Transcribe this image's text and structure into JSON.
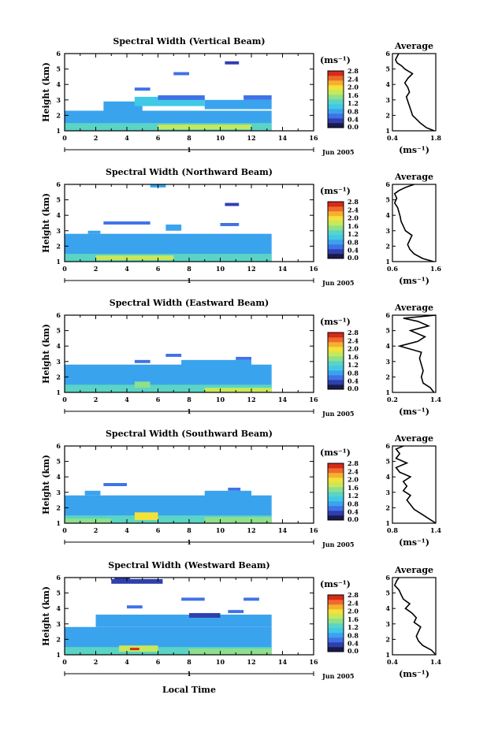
{
  "colorscale": {
    "colors": [
      "#1a1a4a",
      "#2f3fae",
      "#3f72e6",
      "#3aa3ee",
      "#40c9e6",
      "#5ad4c4",
      "#8ee08c",
      "#c8e85a",
      "#f2e23a",
      "#f6b030",
      "#ef6a2a",
      "#d62a1a"
    ]
  },
  "bottom_xlabel": "Local Time",
  "chart_data": [
    {
      "type": "heatmap",
      "title": "Spectral Width (Vertical Beam)",
      "ylabel": "Height (km)",
      "ylim": [
        1,
        6
      ],
      "yticks": [
        "1",
        "2",
        "3",
        "4",
        "5",
        "6"
      ],
      "xlim": [
        0,
        16
      ],
      "xticks": [
        "0",
        "2",
        "4",
        "6",
        "8",
        "10",
        "12",
        "14",
        "16"
      ],
      "date_label": "Jun 2005",
      "day_label": "1",
      "colorbar": {
        "unit": "(ms⁻¹)",
        "ticks": [
          "2.8",
          "2.4",
          "2.0",
          "1.6",
          "1.2",
          "0.8",
          "0.4",
          "0.0"
        ],
        "min": 0.0,
        "max": 2.8
      },
      "data_extent": {
        "x_end": 13.3,
        "base_top": 2.3
      },
      "patches": [
        {
          "x0": 0,
          "x1": 13.3,
          "y0": 1.0,
          "y1": 2.3,
          "v": 0.9
        },
        {
          "x0": 0,
          "x1": 13.3,
          "y0": 1.0,
          "y1": 1.5,
          "v": 1.3
        },
        {
          "x0": 6,
          "x1": 12,
          "y0": 1.1,
          "y1": 1.4,
          "v": 1.7
        },
        {
          "x0": 2,
          "x1": 12,
          "y0": 1.9,
          "y1": 2.3,
          "v": 0.7
        },
        {
          "x0": 2.5,
          "x1": 5,
          "y0": 2.3,
          "y1": 2.9,
          "v": 0.8
        },
        {
          "x0": 4.5,
          "x1": 9,
          "y0": 2.6,
          "y1": 3.2,
          "v": 1.0
        },
        {
          "x0": 6,
          "x1": 9,
          "y0": 3.0,
          "y1": 3.3,
          "v": 0.5
        },
        {
          "x0": 9,
          "x1": 13.3,
          "y0": 2.4,
          "y1": 3.0,
          "v": 0.9
        },
        {
          "x0": 11.5,
          "x1": 13.3,
          "y0": 3.0,
          "y1": 3.3,
          "v": 0.6
        },
        {
          "x0": 4.5,
          "x1": 5.5,
          "y0": 3.6,
          "y1": 3.8,
          "v": 0.5
        },
        {
          "x0": 7,
          "x1": 8,
          "y0": 4.6,
          "y1": 4.8,
          "v": 0.5
        },
        {
          "x0": 10.3,
          "x1": 11.2,
          "y0": 5.3,
          "y1": 5.5,
          "v": 0.3
        }
      ],
      "profile": {
        "xlim": [
          0.4,
          1.8
        ],
        "xticks": [
          "0.4",
          "1.8"
        ],
        "title": "Average",
        "xlabel": "(ms⁻¹)",
        "y": [
          1.0,
          1.2,
          1.5,
          1.8,
          2.0,
          2.3,
          2.6,
          2.9,
          3.2,
          3.5,
          3.8,
          4.1,
          4.4,
          4.7,
          5.0,
          5.2,
          5.4,
          5.6,
          5.8,
          6.0
        ],
        "x": [
          1.75,
          1.5,
          1.3,
          1.15,
          1.05,
          1.0,
          0.95,
          0.9,
          0.85,
          0.95,
          0.9,
          0.8,
          0.9,
          1.05,
          0.8,
          0.7,
          0.55,
          0.5,
          0.55,
          0.6
        ]
      }
    },
    {
      "type": "heatmap",
      "title": "Spectral Width (Northward Beam)",
      "ylabel": "Height (km)",
      "ylim": [
        1,
        6
      ],
      "yticks": [
        "1",
        "2",
        "3",
        "4",
        "5",
        "6"
      ],
      "xlim": [
        0,
        16
      ],
      "xticks": [
        "0",
        "2",
        "4",
        "6",
        "8",
        "10",
        "12",
        "14",
        "16"
      ],
      "date_label": "Jun 2005",
      "day_label": "1",
      "colorbar": {
        "unit": "(ms⁻¹)",
        "ticks": [
          "2.8",
          "2.4",
          "2.0",
          "1.6",
          "1.2",
          "0.8",
          "0.4",
          "0.0"
        ],
        "min": 0.0,
        "max": 2.8
      },
      "data_extent": {
        "x_end": 13.3,
        "base_top": 2.8
      },
      "patches": [
        {
          "x0": 0,
          "x1": 13.3,
          "y0": 1.0,
          "y1": 2.8,
          "v": 0.9
        },
        {
          "x0": 0,
          "x1": 13.3,
          "y0": 1.0,
          "y1": 1.5,
          "v": 1.3
        },
        {
          "x0": 2,
          "x1": 7,
          "y0": 1.1,
          "y1": 1.4,
          "v": 1.7
        },
        {
          "x0": 7,
          "x1": 12,
          "y0": 1.7,
          "y1": 2.2,
          "v": 0.7
        },
        {
          "x0": 1.5,
          "x1": 2.3,
          "y0": 2.8,
          "y1": 3.0,
          "v": 0.9
        },
        {
          "x0": 2.5,
          "x1": 5.5,
          "y0": 3.4,
          "y1": 3.6,
          "v": 0.5
        },
        {
          "x0": 6.5,
          "x1": 7.5,
          "y0": 3.0,
          "y1": 3.4,
          "v": 0.8
        },
        {
          "x0": 10,
          "x1": 11.2,
          "y0": 3.3,
          "y1": 3.5,
          "v": 0.6
        },
        {
          "x0": 10.3,
          "x1": 11.2,
          "y0": 4.6,
          "y1": 4.8,
          "v": 0.4
        },
        {
          "x0": 5.5,
          "x1": 6.5,
          "y0": 5.8,
          "y1": 6.0,
          "v": 0.7
        }
      ],
      "profile": {
        "xlim": [
          0.6,
          1.6
        ],
        "xticks": [
          "0.6",
          "1.6"
        ],
        "title": "Average",
        "xlabel": "(ms⁻¹)",
        "y": [
          1.0,
          1.2,
          1.5,
          1.8,
          2.1,
          2.4,
          2.7,
          3.0,
          3.3,
          3.6,
          3.9,
          4.2,
          4.5,
          4.8,
          5.1,
          5.4,
          5.6,
          5.8,
          6.0
        ],
        "x": [
          1.55,
          1.3,
          1.1,
          1.0,
          0.95,
          1.0,
          1.05,
          0.9,
          0.85,
          0.8,
          0.78,
          0.75,
          0.72,
          0.65,
          0.7,
          0.65,
          0.75,
          0.9,
          1.1
        ]
      }
    },
    {
      "type": "heatmap",
      "title": "Spectral Width (Eastward Beam)",
      "ylabel": "Height (km)",
      "ylim": [
        1,
        6
      ],
      "yticks": [
        "1",
        "2",
        "3",
        "4",
        "5",
        "6"
      ],
      "xlim": [
        0,
        16
      ],
      "xticks": [
        "0",
        "2",
        "4",
        "6",
        "8",
        "10",
        "12",
        "14",
        "16"
      ],
      "date_label": "Jun 2005",
      "day_label": "1",
      "colorbar": {
        "unit": "(ms⁻¹)",
        "ticks": [
          "2.8",
          "2.4",
          "2.0",
          "1.6",
          "1.2",
          "0.8",
          "0.4",
          "0.0"
        ],
        "min": 0.0,
        "max": 2.8
      },
      "data_extent": {
        "x_end": 13.3,
        "base_top": 2.8
      },
      "patches": [
        {
          "x0": 0,
          "x1": 13.3,
          "y0": 1.0,
          "y1": 2.8,
          "v": 0.9
        },
        {
          "x0": 0,
          "x1": 13.3,
          "y0": 1.0,
          "y1": 1.5,
          "v": 1.3
        },
        {
          "x0": 9,
          "x1": 13.3,
          "y0": 1.0,
          "y1": 1.3,
          "v": 1.7
        },
        {
          "x0": 4.5,
          "x1": 5.5,
          "y0": 1.3,
          "y1": 1.7,
          "v": 1.6
        },
        {
          "x0": 2,
          "x1": 9,
          "y0": 1.8,
          "y1": 2.3,
          "v": 0.7
        },
        {
          "x0": 4.5,
          "x1": 5.5,
          "y0": 2.9,
          "y1": 3.1,
          "v": 0.5
        },
        {
          "x0": 6.5,
          "x1": 7.5,
          "y0": 3.3,
          "y1": 3.5,
          "v": 0.5
        },
        {
          "x0": 7.5,
          "x1": 12,
          "y0": 2.7,
          "y1": 3.1,
          "v": 0.7
        },
        {
          "x0": 11,
          "x1": 12,
          "y0": 3.1,
          "y1": 3.3,
          "v": 0.6
        }
      ],
      "profile": {
        "xlim": [
          0.2,
          1.4
        ],
        "xticks": [
          "0.2",
          "1.4"
        ],
        "title": "Average",
        "xlabel": "(ms⁻¹)",
        "y": [
          1.0,
          1.3,
          1.6,
          2.0,
          2.4,
          2.8,
          3.2,
          3.6,
          4.0,
          4.3,
          4.6,
          5.0,
          5.3,
          5.6,
          5.8,
          6.0
        ],
        "x": [
          1.35,
          1.25,
          1.05,
          1.0,
          1.05,
          1.0,
          0.95,
          1.0,
          0.4,
          0.9,
          1.1,
          0.7,
          1.2,
          0.9,
          0.5,
          1.4
        ]
      }
    },
    {
      "type": "heatmap",
      "title": "Spectral Width (Southward Beam)",
      "ylabel": "Height (km)",
      "ylim": [
        1,
        6
      ],
      "yticks": [
        "1",
        "2",
        "3",
        "4",
        "5",
        "6"
      ],
      "xlim": [
        0,
        16
      ],
      "xticks": [
        "0",
        "2",
        "4",
        "6",
        "8",
        "10",
        "12",
        "14",
        "16"
      ],
      "date_label": "Jun 2005",
      "day_label": "1",
      "colorbar": {
        "unit": "(ms⁻¹)",
        "ticks": [
          "2.8",
          "2.4",
          "2.0",
          "1.6",
          "1.2",
          "0.8",
          "0.4",
          "0.0"
        ],
        "min": 0.0,
        "max": 2.8
      },
      "data_extent": {
        "x_end": 13.3,
        "base_top": 2.8
      },
      "patches": [
        {
          "x0": 0,
          "x1": 13.3,
          "y0": 1.0,
          "y1": 2.8,
          "v": 0.9
        },
        {
          "x0": 0,
          "x1": 13.3,
          "y0": 1.0,
          "y1": 1.5,
          "v": 1.3
        },
        {
          "x0": 0,
          "x1": 3,
          "y0": 1.0,
          "y1": 1.3,
          "v": 1.6
        },
        {
          "x0": 4.5,
          "x1": 6,
          "y0": 1.2,
          "y1": 1.7,
          "v": 1.9
        },
        {
          "x0": 9,
          "x1": 13.3,
          "y0": 1.0,
          "y1": 1.4,
          "v": 1.6
        },
        {
          "x0": 1.3,
          "x1": 2.3,
          "y0": 2.8,
          "y1": 3.1,
          "v": 0.7
        },
        {
          "x0": 2.5,
          "x1": 4,
          "y0": 3.4,
          "y1": 3.6,
          "v": 0.5
        },
        {
          "x0": 9,
          "x1": 12,
          "y0": 2.7,
          "y1": 3.1,
          "v": 0.8
        },
        {
          "x0": 10.5,
          "x1": 11.3,
          "y0": 3.1,
          "y1": 3.3,
          "v": 0.6
        }
      ],
      "profile": {
        "xlim": [
          0.8,
          1.4
        ],
        "xticks": [
          "0.8",
          "1.4"
        ],
        "title": "Average",
        "xlabel": "(ms⁻¹)",
        "y": [
          1.0,
          1.3,
          1.6,
          1.9,
          2.2,
          2.5,
          2.8,
          3.1,
          3.4,
          3.7,
          4.0,
          4.3,
          4.6,
          4.9,
          5.2,
          5.5,
          5.8,
          6.0
        ],
        "x": [
          1.4,
          1.3,
          1.2,
          1.1,
          1.05,
          1.0,
          1.05,
          0.95,
          1.0,
          0.95,
          1.05,
          0.9,
          0.85,
          1.0,
          0.85,
          0.9,
          0.85,
          0.95
        ]
      }
    },
    {
      "type": "heatmap",
      "title": "Spectral Width (Westward Beam)",
      "ylabel": "Height (km)",
      "ylim": [
        1,
        6
      ],
      "yticks": [
        "1",
        "2",
        "3",
        "4",
        "5",
        "6"
      ],
      "xlim": [
        0,
        16
      ],
      "xticks": [
        "0",
        "2",
        "4",
        "6",
        "8",
        "10",
        "12",
        "14",
        "16"
      ],
      "date_label": "Jun 2005",
      "day_label": "1",
      "colorbar": {
        "unit": "(ms⁻¹)",
        "ticks": [
          "2.8",
          "2.4",
          "2.0",
          "1.6",
          "1.2",
          "0.8",
          "0.4",
          "0.0"
        ],
        "min": 0.0,
        "max": 2.8
      },
      "data_extent": {
        "x_end": 13.3,
        "base_top": 2.8
      },
      "patches": [
        {
          "x0": 0,
          "x1": 13.3,
          "y0": 1.0,
          "y1": 2.8,
          "v": 0.9
        },
        {
          "x0": 0,
          "x1": 13.3,
          "y0": 1.0,
          "y1": 1.5,
          "v": 1.3
        },
        {
          "x0": 3.5,
          "x1": 6,
          "y0": 1.2,
          "y1": 1.6,
          "v": 1.8
        },
        {
          "x0": 4.2,
          "x1": 4.8,
          "y0": 1.3,
          "y1": 1.45,
          "v": 2.7
        },
        {
          "x0": 8,
          "x1": 13.3,
          "y0": 1.0,
          "y1": 1.4,
          "v": 1.6
        },
        {
          "x0": 2,
          "x1": 13.3,
          "y0": 2.8,
          "y1": 3.6,
          "v": 0.8
        },
        {
          "x0": 8,
          "x1": 10,
          "y0": 3.4,
          "y1": 3.7,
          "v": 0.4
        },
        {
          "x0": 10.5,
          "x1": 11.5,
          "y0": 3.7,
          "y1": 3.9,
          "v": 0.5
        },
        {
          "x0": 4,
          "x1": 5,
          "y0": 4.0,
          "y1": 4.2,
          "v": 0.5
        },
        {
          "x0": 7.5,
          "x1": 9,
          "y0": 4.5,
          "y1": 4.7,
          "v": 0.6
        },
        {
          "x0": 11.5,
          "x1": 12.5,
          "y0": 4.5,
          "y1": 4.7,
          "v": 0.6
        },
        {
          "x0": 3,
          "x1": 6.3,
          "y0": 5.6,
          "y1": 5.9,
          "v": 0.4
        },
        {
          "x0": 3.2,
          "x1": 4.2,
          "y0": 5.85,
          "y1": 6.0,
          "v": 0.3
        }
      ],
      "profile": {
        "xlim": [
          0.4,
          1.4
        ],
        "xticks": [
          "0.4",
          "1.4"
        ],
        "title": "Average",
        "xlabel": "(ms⁻¹)",
        "y": [
          1.0,
          1.3,
          1.6,
          1.9,
          2.2,
          2.5,
          2.8,
          3.1,
          3.4,
          3.7,
          4.0,
          4.3,
          4.6,
          4.9,
          5.2,
          5.5,
          5.8,
          6.0
        ],
        "x": [
          1.4,
          1.3,
          1.1,
          1.0,
          0.95,
          1.0,
          1.05,
          0.9,
          0.95,
          0.85,
          0.7,
          0.8,
          0.65,
          0.6,
          0.55,
          0.45,
          0.5,
          0.55
        ]
      }
    }
  ]
}
